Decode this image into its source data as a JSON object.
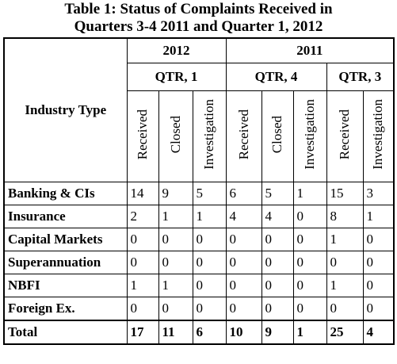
{
  "title": [
    "Table 1: Status of Complaints Received in",
    "Quarters 3-4 2011 and Quarter 1, 2012"
  ],
  "table": {
    "row_header": "Industry Type",
    "years": [
      {
        "year": "2012",
        "quarters": [
          {
            "quarter": "QTR, 1",
            "columns": [
              "Received",
              "Closed",
              "Investigation"
            ]
          }
        ]
      },
      {
        "year": "2011",
        "quarters": [
          {
            "quarter": "QTR, 4",
            "columns": [
              "Received",
              "Closed",
              "Investigation"
            ]
          },
          {
            "quarter": "QTR, 3",
            "columns": [
              "Received",
              "Investigation"
            ]
          }
        ]
      }
    ],
    "rows": [
      {
        "label": "Banking & CIs",
        "values": [
          14,
          9,
          5,
          6,
          5,
          1,
          15,
          3
        ]
      },
      {
        "label": "Insurance",
        "values": [
          2,
          1,
          1,
          4,
          4,
          0,
          8,
          1
        ]
      },
      {
        "label": "Capital Markets",
        "values": [
          0,
          0,
          0,
          0,
          0,
          0,
          1,
          0
        ]
      },
      {
        "label": "Superannuation",
        "values": [
          0,
          0,
          0,
          0,
          0,
          0,
          0,
          0
        ]
      },
      {
        "label": "NBFI",
        "values": [
          1,
          1,
          0,
          0,
          0,
          0,
          1,
          0
        ]
      },
      {
        "label": "Foreign Ex.",
        "values": [
          0,
          0,
          0,
          0,
          0,
          0,
          0,
          0
        ]
      }
    ],
    "total": {
      "label": "Total",
      "values": [
        17,
        11,
        6,
        10,
        9,
        1,
        25,
        4
      ]
    }
  }
}
